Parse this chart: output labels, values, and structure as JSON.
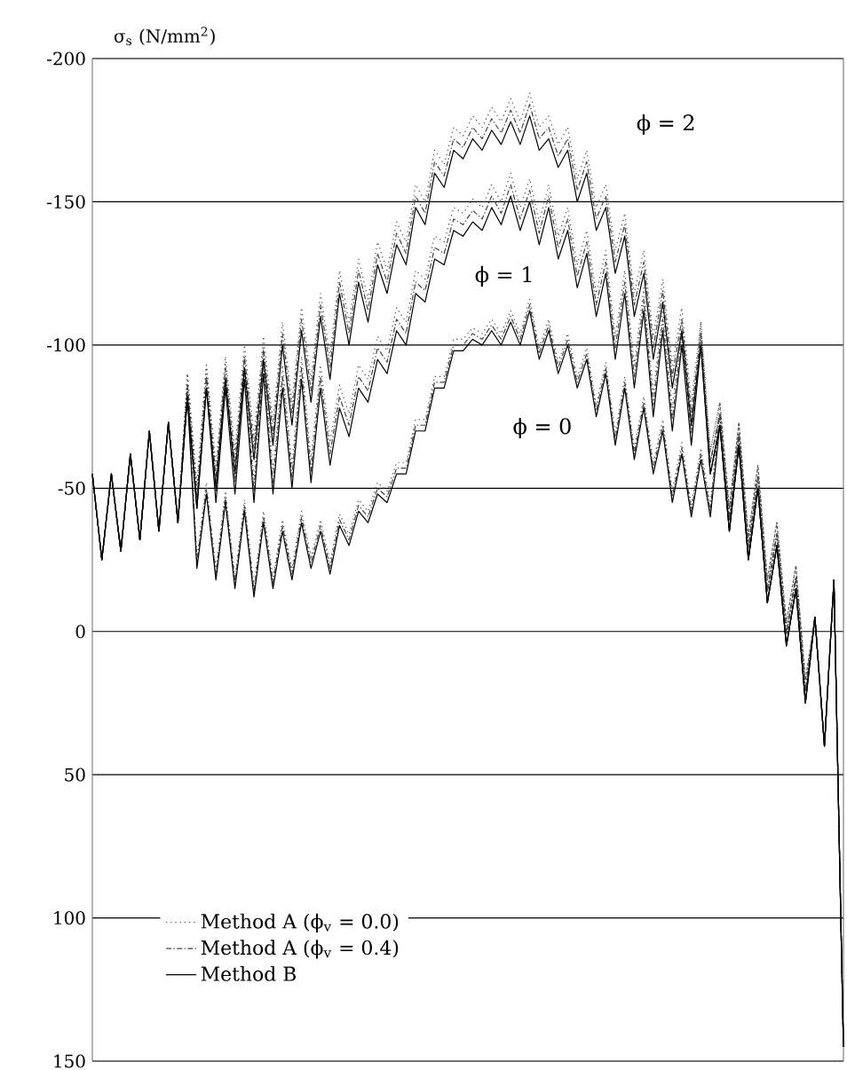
{
  "chart_data": {
    "type": "line",
    "ylabel": "σ$_{s}$ (N/mm$^{2}$)",
    "categories": [
      null,
      null,
      null,
      null,
      null,
      null,
      null,
      null,
      null,
      null,
      null,
      null,
      null,
      null,
      null,
      null,
      null,
      null,
      null,
      null,
      null,
      null,
      null,
      null,
      null,
      null,
      null,
      null,
      null,
      null,
      null,
      null,
      null,
      null,
      null,
      null,
      null,
      null,
      null,
      null,
      null,
      null,
      null,
      null,
      null,
      null,
      null,
      null,
      null,
      null,
      null,
      null,
      null,
      null,
      null,
      null,
      null,
      null,
      null,
      null,
      null,
      null,
      null,
      null,
      null,
      null,
      null,
      null,
      null,
      null,
      null,
      null,
      null,
      null,
      null,
      null,
      null,
      null,
      null,
      null
    ],
    "ylim": [
      150,
      -200
    ],
    "yticks": [
      -200,
      -150,
      -100,
      -50,
      0,
      50,
      100,
      150
    ],
    "grid": "y",
    "legend": "bottom left",
    "tick_labels": "y",
    "marker": "none",
    "annotations": [
      "ϕ = 2",
      "ϕ = 1",
      "ϕ = 0"
    ],
    "series": [
      {
        "name": "Method A (ϕ$_{v}$ = 0.0)",
        "color": "#444444",
        "line_style": "dotted",
        "values": [
          -55,
          -25,
          -55,
          -28,
          -62,
          -32,
          -70,
          -35,
          -73,
          -38,
          -86,
          -26,
          -52,
          -22,
          -49,
          -19,
          -46,
          -16,
          -42,
          -19,
          -39,
          -22,
          -42,
          -26,
          -39,
          -24,
          -41,
          -34,
          -46,
          -42,
          -52,
          -49,
          -59,
          -59,
          -74,
          -74,
          -89,
          -89,
          -102,
          -102,
          -106,
          -104,
          -109,
          -104,
          -112,
          -104,
          -116,
          -99,
          -109,
          -94,
          -104,
          -89,
          -99,
          -79,
          -94,
          -69,
          -89,
          -64,
          -82,
          -59,
          -74,
          -49,
          -66,
          -44,
          -64,
          -44,
          -80,
          -43,
          -73,
          -33,
          -58,
          -18,
          -38,
          -3,
          -23,
          17,
          -5,
          40,
          -18,
          145
        ]
      },
      {
        "name": "Method A (ϕ$_{v}$ = 0.4)",
        "color": "#444444",
        "line_style": "dashed",
        "values": [
          -55,
          -25,
          -55,
          -28,
          -62,
          -32,
          -70,
          -35,
          -73,
          -38,
          -84,
          -24,
          -50,
          -20,
          -47,
          -17,
          -44,
          -14,
          -40,
          -17,
          -37,
          -20,
          -40,
          -24,
          -37,
          -22,
          -39,
          -32,
          -44,
          -40,
          -50,
          -47,
          -57,
          -57,
          -72,
          -72,
          -87,
          -87,
          -100,
          -100,
          -104,
          -102,
          -107,
          -102,
          -110,
          -102,
          -114,
          -97,
          -107,
          -92,
          -102,
          -87,
          -97,
          -77,
          -92,
          -67,
          -87,
          -62,
          -80,
          -57,
          -72,
          -47,
          -64,
          -42,
          -62,
          -42,
          -76,
          -39,
          -69,
          -29,
          -54,
          -14,
          -34,
          1,
          -19,
          21,
          -5,
          40,
          -18,
          145
        ]
      },
      {
        "name": "Method B",
        "color": "#000000",
        "line_style": "solid",
        "values": [
          -55,
          -25,
          -55,
          -28,
          -62,
          -32,
          -70,
          -35,
          -73,
          -38,
          -82,
          -22,
          -48,
          -18,
          -45,
          -15,
          -42,
          -12,
          -38,
          -15,
          -35,
          -18,
          -38,
          -22,
          -35,
          -20,
          -37,
          -30,
          -42,
          -38,
          -48,
          -45,
          -55,
          -55,
          -70,
          -70,
          -85,
          -85,
          -98,
          -98,
          -102,
          -100,
          -105,
          -100,
          -108,
          -100,
          -112,
          -95,
          -105,
          -90,
          -100,
          -85,
          -95,
          -75,
          -90,
          -65,
          -85,
          -60,
          -78,
          -55,
          -70,
          -45,
          -62,
          -40,
          -60,
          -40,
          -72,
          -35,
          -65,
          -25,
          -50,
          -10,
          -30,
          5,
          -15,
          25,
          -5,
          40,
          -18,
          145
        ]
      },
      {
        "color": "#444444",
        "line_style": "dotted",
        "values": [
          -55,
          -25,
          -55,
          -28,
          -62,
          -32,
          -70,
          -35,
          -73,
          -38,
          -90,
          -51,
          -93,
          -53,
          -93,
          -56,
          -96,
          -53,
          -98,
          -56,
          -93,
          -58,
          -96,
          -60,
          -93,
          -66,
          -86,
          -76,
          -93,
          -88,
          -103,
          -98,
          -113,
          -108,
          -126,
          -123,
          -138,
          -136,
          -148,
          -146,
          -151,
          -148,
          -156,
          -150,
          -160,
          -148,
          -158,
          -143,
          -156,
          -138,
          -148,
          -128,
          -140,
          -118,
          -133,
          -103,
          -126,
          -93,
          -120,
          -83,
          -113,
          -78,
          -108,
          -73,
          -108,
          -63,
          -80,
          -43,
          -73,
          -33,
          -58,
          -18,
          -38,
          -3,
          -23,
          17,
          -5,
          40,
          -18,
          145
        ]
      },
      {
        "color": "#444444",
        "line_style": "dashed",
        "values": [
          -55,
          -25,
          -55,
          -28,
          -62,
          -32,
          -70,
          -35,
          -73,
          -38,
          -86,
          -47,
          -89,
          -49,
          -89,
          -52,
          -92,
          -49,
          -94,
          -52,
          -89,
          -54,
          -92,
          -56,
          -89,
          -62,
          -82,
          -72,
          -89,
          -84,
          -99,
          -94,
          -109,
          -104,
          -122,
          -119,
          -134,
          -132,
          -144,
          -142,
          -147,
          -144,
          -152,
          -146,
          -156,
          -144,
          -154,
          -139,
          -152,
          -134,
          -144,
          -124,
          -136,
          -114,
          -129,
          -99,
          -122,
          -89,
          -116,
          -79,
          -109,
          -74,
          -104,
          -69,
          -104,
          -59,
          -76,
          -39,
          -69,
          -29,
          -54,
          -14,
          -34,
          1,
          -19,
          21,
          -5,
          40,
          -18,
          145
        ]
      },
      {
        "color": "#000000",
        "line_style": "solid",
        "values": [
          -55,
          -25,
          -55,
          -28,
          -62,
          -32,
          -70,
          -35,
          -73,
          -38,
          -82,
          -43,
          -85,
          -45,
          -85,
          -48,
          -88,
          -45,
          -90,
          -48,
          -85,
          -50,
          -88,
          -52,
          -85,
          -58,
          -78,
          -68,
          -85,
          -80,
          -95,
          -90,
          -105,
          -100,
          -118,
          -115,
          -130,
          -128,
          -140,
          -138,
          -143,
          -140,
          -148,
          -142,
          -152,
          -140,
          -150,
          -135,
          -148,
          -130,
          -140,
          -120,
          -132,
          -110,
          -125,
          -95,
          -118,
          -85,
          -112,
          -75,
          -105,
          -70,
          -100,
          -65,
          -100,
          -55,
          -72,
          -35,
          -65,
          -25,
          -50,
          -10,
          -30,
          5,
          -15,
          25,
          -5,
          40,
          -18,
          145
        ]
      },
      {
        "color": "#444444",
        "line_style": "dotted",
        "values": [
          -55,
          -25,
          -55,
          -28,
          -62,
          -32,
          -70,
          -35,
          -73,
          -38,
          -90,
          -51,
          -93,
          -58,
          -96,
          -63,
          -100,
          -68,
          -103,
          -73,
          -108,
          -80,
          -113,
          -88,
          -118,
          -96,
          -126,
          -108,
          -130,
          -116,
          -136,
          -126,
          -143,
          -136,
          -156,
          -150,
          -168,
          -163,
          -176,
          -173,
          -180,
          -176,
          -183,
          -178,
          -186,
          -178,
          -188,
          -176,
          -180,
          -170,
          -176,
          -158,
          -168,
          -148,
          -156,
          -133,
          -146,
          -118,
          -133,
          -103,
          -123,
          -93,
          -113,
          -80,
          -108,
          -63,
          -80,
          -43,
          -73,
          -33,
          -58,
          -18,
          -38,
          -3,
          -23,
          17,
          -5,
          40,
          -18,
          145
        ]
      },
      {
        "color": "#444444",
        "line_style": "dashed",
        "values": [
          -55,
          -25,
          -55,
          -28,
          -62,
          -32,
          -70,
          -35,
          -73,
          -38,
          -86,
          -47,
          -89,
          -54,
          -92,
          -59,
          -96,
          -64,
          -99,
          -69,
          -104,
          -76,
          -109,
          -84,
          -114,
          -92,
          -122,
          -104,
          -126,
          -112,
          -132,
          -122,
          -139,
          -132,
          -152,
          -146,
          -164,
          -159,
          -172,
          -169,
          -176,
          -172,
          -179,
          -174,
          -182,
          -174,
          -184,
          -172,
          -176,
          -166,
          -172,
          -154,
          -164,
          -144,
          -152,
          -129,
          -142,
          -114,
          -129,
          -99,
          -119,
          -89,
          -109,
          -76,
          -104,
          -59,
          -76,
          -39,
          -69,
          -29,
          -54,
          -14,
          -34,
          1,
          -19,
          21,
          -5,
          40,
          -18,
          145
        ]
      },
      {
        "color": "#000000",
        "line_style": "solid",
        "values": [
          -55,
          -25,
          -55,
          -28,
          -62,
          -32,
          -70,
          -35,
          -73,
          -38,
          -82,
          -43,
          -85,
          -50,
          -88,
          -55,
          -92,
          -60,
          -95,
          -65,
          -100,
          -72,
          -105,
          -80,
          -110,
          -88,
          -118,
          -100,
          -122,
          -108,
          -128,
          -118,
          -135,
          -128,
          -148,
          -142,
          -160,
          -155,
          -168,
          -165,
          -172,
          -168,
          -175,
          -170,
          -178,
          -170,
          -180,
          -168,
          -172,
          -162,
          -168,
          -150,
          -160,
          -140,
          -148,
          -125,
          -138,
          -110,
          -125,
          -95,
          -115,
          -85,
          -105,
          -72,
          -100,
          -55,
          -72,
          -35,
          -65,
          -25,
          -50,
          -10,
          -30,
          5,
          -15,
          25,
          -5,
          40,
          -18,
          145
        ]
      }
    ]
  }
}
